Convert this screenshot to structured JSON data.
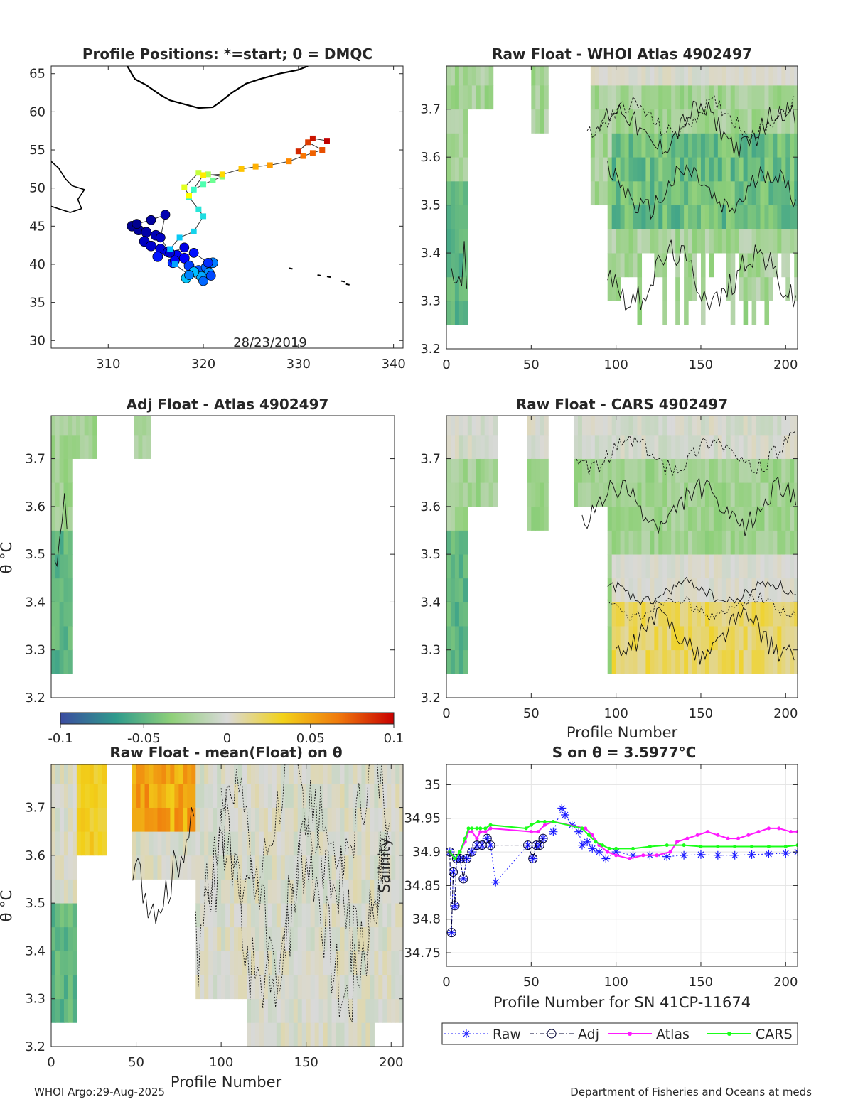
{
  "footer": {
    "left": "WHOI Argo:29-Aug-2025",
    "right": "Department of Fisheries and Oceans at meds"
  },
  "colorbar": {
    "ticks": [
      "-0.1",
      "-0.05",
      "0",
      "0.05",
      "0.1"
    ],
    "range": [
      -0.1,
      0.1
    ],
    "colormap": [
      "#3b4ca0",
      "#2f9b8c",
      "#8fd079",
      "#d9d9d9",
      "#f2d21a",
      "#f07a0c",
      "#c80000"
    ]
  },
  "colors": {
    "raw": "#1a1aff",
    "adj": "#000033",
    "atlas": "#ff1aff",
    "cars": "#1aff1a",
    "map_start": "#0000a0",
    "map_end": "#c00000"
  },
  "chart_data": [
    {
      "type": "scatter",
      "title": "Profile Positions: *=start; 0 = DMQC",
      "date_label": "28/23/2019",
      "xlim": [
        304,
        341
      ],
      "ylim": [
        29,
        66
      ],
      "xticks": [
        "310",
        "320",
        "330",
        "340"
      ],
      "yticks": [
        "30",
        "35",
        "40",
        "45",
        "50",
        "55",
        "60",
        "65"
      ],
      "track_lon": [
        313.0,
        314.5,
        316.0,
        315.5,
        316.5,
        318.0,
        317.0,
        319.0,
        320.5,
        320.8,
        320.0,
        318.5,
        317.0,
        316.5,
        317.5,
        319.0,
        320.0,
        319.5,
        318.5,
        319.0,
        320.0,
        321.0,
        322.0,
        320.5,
        319.5,
        318.0,
        318.5,
        320.0,
        322.0,
        324.0,
        325.5,
        327.0,
        329.0,
        330.5,
        331.5,
        332.5,
        331.0,
        330.0,
        331.5,
        333.0
      ],
      "track_lat": [
        45.3,
        45.8,
        46.5,
        43.5,
        41.5,
        42.2,
        40.5,
        41.5,
        40.2,
        38.5,
        37.8,
        38.6,
        40.0,
        42.0,
        43.5,
        44.3,
        46.3,
        47.2,
        48.8,
        49.8,
        50.5,
        51.0,
        51.5,
        51.8,
        52.0,
        50.1,
        49.0,
        51.7,
        51.8,
        52.5,
        52.8,
        53.0,
        53.5,
        54.2,
        54.6,
        55.0,
        56.0,
        54.8,
        56.5,
        56.2
      ],
      "cluster_lon": [
        312.5,
        313.2,
        314.0,
        315.0,
        313.8,
        314.5,
        315.5,
        316.3,
        317.2,
        318.0,
        315.2,
        316.8,
        318.5,
        319.5,
        320.3,
        321.0,
        320.6,
        319.8,
        319.0,
        318.2
      ],
      "cluster_lat": [
        45.0,
        44.5,
        44.2,
        43.8,
        43.0,
        42.4,
        42.0,
        41.6,
        41.2,
        40.8,
        41.0,
        40.2,
        39.8,
        39.2,
        39.6,
        40.2,
        38.9,
        38.4,
        39.0,
        38.2
      ]
    },
    {
      "type": "heatmap",
      "title": "Raw Float - WHOI Atlas  4902497",
      "xlim": [
        0,
        207
      ],
      "ylim": [
        3.2,
        3.79
      ],
      "xticks": [
        "0",
        "50",
        "100",
        "150",
        "200"
      ],
      "yticks": [
        "3.2",
        "3.3",
        "3.4",
        "3.5",
        "3.6",
        "3.7"
      ]
    },
    {
      "type": "heatmap",
      "title": "Adj Float - Atlas  4902497",
      "ylabel": "θ °C",
      "xlim": [
        0,
        207
      ],
      "ylim": [
        3.2,
        3.79
      ],
      "yticks": [
        "3.2",
        "3.3",
        "3.4",
        "3.5",
        "3.6",
        "3.7"
      ]
    },
    {
      "type": "heatmap",
      "title": "Raw Float - CARS  4902497",
      "xlabel": "Profile Number",
      "xlim": [
        0,
        207
      ],
      "ylim": [
        3.2,
        3.79
      ],
      "xticks": [
        "0",
        "50",
        "100",
        "150",
        "200"
      ],
      "yticks": [
        "3.2",
        "3.3",
        "3.4",
        "3.5",
        "3.6",
        "3.7"
      ]
    },
    {
      "type": "heatmap",
      "title": "Raw Float - mean(Float) on θ",
      "xlabel": "Profile Number",
      "ylabel": "θ °C",
      "xlim": [
        0,
        207
      ],
      "ylim": [
        3.2,
        3.79
      ],
      "xticks": [
        "0",
        "50",
        "100",
        "150",
        "200"
      ],
      "yticks": [
        "3.2",
        "3.3",
        "3.4",
        "3.5",
        "3.6",
        "3.7"
      ]
    },
    {
      "type": "line",
      "title": "S on θ = 3.5977°C",
      "xlabel": "Profile Number for SN 41CP-11674",
      "ylabel": "Salinity",
      "xlim": [
        0,
        207
      ],
      "ylim": [
        34.73,
        35.03
      ],
      "xticks": [
        "0",
        "50",
        "100",
        "150",
        "200"
      ],
      "yticks": [
        "34.75",
        "34.8",
        "34.85",
        "34.9",
        "34.95",
        "35"
      ],
      "legend": [
        "Raw",
        "Adj",
        "Atlas",
        "CARS"
      ],
      "series": [
        {
          "name": "Raw",
          "x": [
            2,
            3,
            4,
            5,
            6,
            8,
            10,
            12,
            15,
            18,
            21,
            24,
            26,
            29,
            48,
            51,
            53,
            55,
            57,
            63,
            68,
            70,
            74,
            78,
            80,
            83,
            86,
            90,
            94,
            100,
            110,
            120,
            130,
            140,
            150,
            160,
            170,
            180,
            190,
            200,
            207
          ],
          "y": [
            34.9,
            34.78,
            34.87,
            34.82,
            34.89,
            34.89,
            34.86,
            34.89,
            34.9,
            34.91,
            34.91,
            34.92,
            34.91,
            34.855,
            34.91,
            34.89,
            34.91,
            34.91,
            34.92,
            34.93,
            34.965,
            34.955,
            34.94,
            34.93,
            34.91,
            34.915,
            34.905,
            34.9,
            34.89,
            34.9,
            34.895,
            34.895,
            34.893,
            34.895,
            34.896,
            34.895,
            34.895,
            34.896,
            34.897,
            34.898,
            34.9
          ]
        },
        {
          "name": "Adj",
          "x": [
            2,
            3,
            4,
            5,
            6,
            8,
            10,
            12,
            15,
            18,
            21,
            24,
            26,
            48,
            51,
            53,
            55,
            57
          ],
          "y": [
            34.9,
            34.78,
            34.87,
            34.82,
            34.89,
            34.89,
            34.86,
            34.89,
            34.9,
            34.91,
            34.91,
            34.92,
            34.91,
            34.91,
            34.89,
            34.91,
            34.91,
            34.92
          ]
        },
        {
          "name": "Atlas",
          "x": [
            2,
            5,
            8,
            11,
            13,
            15,
            18,
            20,
            23,
            26,
            50,
            54,
            58,
            63,
            82,
            86,
            90,
            95,
            100,
            108,
            116,
            124,
            132,
            136,
            142,
            148,
            154,
            160,
            166,
            172,
            178,
            184,
            190,
            196,
            203,
            207
          ],
          "y": [
            34.9,
            34.89,
            34.9,
            34.915,
            34.93,
            34.93,
            34.92,
            34.93,
            34.93,
            34.935,
            34.93,
            34.93,
            34.94,
            34.945,
            34.935,
            34.925,
            34.91,
            34.9,
            34.895,
            34.89,
            34.895,
            34.895,
            34.9,
            34.915,
            34.92,
            34.925,
            34.93,
            34.925,
            34.92,
            34.92,
            34.925,
            34.93,
            34.935,
            34.935,
            34.93,
            34.93
          ]
        },
        {
          "name": "CARS",
          "x": [
            2,
            5,
            8,
            11,
            13,
            15,
            18,
            20,
            23,
            26,
            47,
            50,
            54,
            58,
            63,
            80,
            84,
            88,
            92,
            96,
            100,
            110,
            120,
            130,
            140,
            150,
            160,
            170,
            180,
            190,
            200,
            207
          ],
          "y": [
            34.9,
            34.89,
            34.9,
            34.92,
            34.935,
            34.935,
            34.935,
            34.935,
            34.935,
            34.94,
            34.935,
            34.94,
            34.945,
            34.945,
            34.945,
            34.935,
            34.925,
            34.915,
            34.91,
            34.905,
            34.905,
            34.905,
            34.908,
            34.91,
            34.91,
            34.908,
            34.908,
            34.908,
            34.908,
            34.908,
            34.908,
            34.91
          ]
        }
      ]
    }
  ]
}
